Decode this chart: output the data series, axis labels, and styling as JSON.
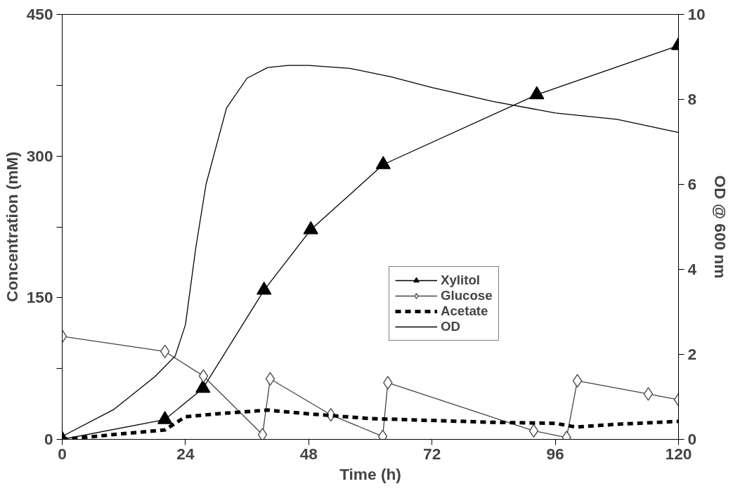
{
  "chart_data": {
    "type": "line",
    "xlabel": "Time (h)",
    "ylabel": "Concentration (mM)",
    "y2label": "OD @ 600 nm",
    "xlim": [
      0,
      120
    ],
    "xticks": [
      0,
      24,
      48,
      72,
      96,
      120
    ],
    "ylim": [
      0,
      450
    ],
    "yticks": [
      0,
      {
        "value": 75,
        "label": null
      },
      150,
      {
        "value": 225,
        "label": null
      },
      300,
      {
        "value": 375,
        "label": null
      },
      450
    ],
    "y2lim": [
      0,
      10
    ],
    "y2ticks": [
      0,
      2,
      4,
      6,
      8,
      10
    ],
    "grid": false,
    "legend": "right",
    "series": [
      {
        "name": "Xylitol",
        "color": "#000000",
        "marker": "triangle",
        "line_style": "solid",
        "x": [
          0,
          20,
          27.4,
          39.3,
          48.4,
          62.5,
          92.4,
          120
        ],
        "values": [
          0,
          21,
          54,
          158,
          222,
          291,
          365,
          417
        ]
      },
      {
        "name": "Glucose",
        "color": "#444444",
        "marker": "diamond",
        "line_style": "solid",
        "x": [
          0,
          20,
          27.5,
          39,
          40.5,
          52.3,
          62.4,
          63.4,
          91.8,
          98.2,
          100.3,
          114.1,
          120
        ],
        "values": [
          109,
          93,
          67,
          5,
          64,
          26,
          3,
          60,
          9,
          2,
          62,
          48,
          42
        ]
      },
      {
        "name": "Acetate",
        "color": "#000000",
        "marker": "none",
        "line_style": "dashed",
        "x": [
          0,
          20,
          24,
          30,
          40,
          48,
          60,
          72,
          84,
          96,
          100,
          108,
          120
        ],
        "values": [
          0,
          10,
          24,
          27,
          31,
          27,
          22,
          20,
          18,
          17,
          13,
          16,
          19
        ]
      },
      {
        "name": "OD",
        "color": "#000000",
        "marker": "none",
        "line_style": "solid",
        "axis": "y2",
        "x": [
          0,
          10,
          18,
          22,
          24,
          26,
          28,
          32,
          36,
          40,
          44,
          48,
          56,
          64,
          72,
          84,
          96,
          108,
          120
        ],
        "values": [
          0.07,
          0.7,
          1.47,
          1.96,
          2.7,
          4.5,
          6.0,
          7.8,
          8.5,
          8.75,
          8.8,
          8.8,
          8.73,
          8.53,
          8.28,
          7.95,
          7.68,
          7.53,
          7.22
        ]
      }
    ]
  }
}
